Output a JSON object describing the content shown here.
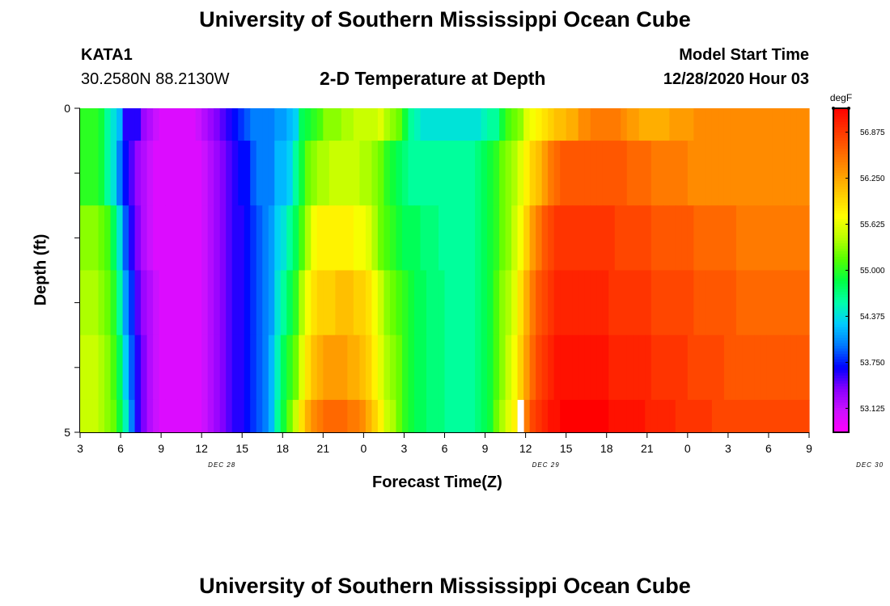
{
  "header": {
    "title": "University of Southern Mississippi Ocean Cube",
    "station": "KATA1",
    "location": "30.2580N 88.2130W",
    "model_start_label": "Model Start Time",
    "model_start_value": "12/28/2020 Hour 03"
  },
  "footer": {
    "title": "University of Southern Mississippi Ocean Cube"
  },
  "chart_data": {
    "type": "heatmap",
    "title": "2-D Temperature at Depth",
    "xlabel": "Forecast Time(Z)",
    "ylabel": "Depth (ft)",
    "x_tick_labels": [
      "3",
      "6",
      "9",
      "12",
      "15",
      "18",
      "21",
      "0",
      "3",
      "6",
      "9",
      "12",
      "15",
      "18",
      "21",
      "0",
      "3",
      "6",
      "9"
    ],
    "y_tick_labels": [
      "0",
      "5"
    ],
    "y_range": [
      0,
      5
    ],
    "date_labels": [
      "DEC 28",
      "DEC 29",
      "DEC 30"
    ],
    "colorbar": {
      "unit": "degF",
      "tick_labels": [
        "56.875",
        "56.250",
        "55.625",
        "55.000",
        "54.375",
        "53.750",
        "53.125"
      ],
      "range": [
        52.8,
        57.2
      ],
      "colors": [
        "#ff00ff",
        "#cc11ff",
        "#8800ff",
        "#0000ff",
        "#0077ff",
        "#00ccff",
        "#00ffaa",
        "#00ff44",
        "#55ff00",
        "#bbff00",
        "#ffff00",
        "#ffcc00",
        "#ff9900",
        "#ff6600",
        "#ff3300",
        "#ff0000"
      ]
    },
    "time_step_hours": 1,
    "start_hour": 3,
    "depth_rows": [
      {
        "depth_range": [
          0.0,
          0.5
        ],
        "values": [
          55.0,
          55.0,
          55.0,
          54.9,
          54.6,
          54.4,
          54.2,
          53.6,
          53.6,
          53.6,
          53.3,
          53.2,
          53.1,
          53.0,
          53.0,
          53.0,
          53.0,
          53.0,
          53.0,
          53.1,
          53.2,
          53.3,
          53.4,
          53.5,
          53.6,
          53.7,
          53.8,
          53.9,
          54.0,
          54.0,
          54.0,
          54.0,
          54.1,
          54.1,
          54.2,
          54.3,
          54.8,
          54.9,
          55.0,
          55.1,
          55.3,
          55.3,
          55.3,
          55.4,
          55.4,
          55.5,
          55.5,
          55.5,
          55.5,
          55.6,
          55.4,
          55.3,
          55.2,
          54.9,
          54.6,
          54.5,
          54.4,
          54.4,
          54.4,
          54.4,
          54.4,
          54.4,
          54.4,
          54.4,
          54.4,
          54.4,
          54.5,
          54.6,
          54.6,
          54.9,
          55.1,
          55.2,
          55.3,
          55.6,
          55.7,
          55.8,
          55.9,
          56.0,
          56.1,
          56.1,
          56.2,
          56.2,
          56.4,
          56.4,
          56.5,
          56.5,
          56.5,
          56.5,
          56.5,
          56.4,
          56.3,
          56.3,
          56.2,
          56.2,
          56.2,
          56.2,
          56.2,
          56.3,
          56.3,
          56.3,
          56.3,
          56.4,
          56.4,
          56.4,
          56.4,
          56.4,
          56.4,
          56.4,
          56.4,
          56.4,
          56.4,
          56.4,
          56.4,
          56.4,
          56.4,
          56.4,
          56.4,
          56.4,
          56.4,
          56.4
        ]
      },
      {
        "depth_range": [
          0.5,
          1.5
        ],
        "values": [
          55.0,
          55.0,
          55.0,
          54.9,
          54.6,
          54.4,
          54.0,
          53.7,
          53.5,
          53.3,
          53.2,
          53.1,
          53.0,
          53.0,
          53.0,
          53.0,
          53.0,
          53.0,
          53.0,
          53.0,
          53.1,
          53.2,
          53.3,
          53.4,
          53.5,
          53.6,
          53.7,
          53.7,
          53.9,
          54.0,
          54.0,
          54.0,
          54.2,
          54.2,
          54.3,
          54.6,
          54.9,
          55.2,
          55.3,
          55.4,
          55.4,
          55.5,
          55.5,
          55.5,
          55.5,
          55.5,
          55.4,
          55.4,
          55.3,
          55.2,
          55.0,
          54.9,
          54.8,
          54.7,
          54.6,
          54.6,
          54.6,
          54.6,
          54.6,
          54.6,
          54.6,
          54.6,
          54.6,
          54.6,
          54.6,
          54.7,
          54.8,
          54.9,
          55.0,
          55.2,
          55.3,
          55.4,
          55.6,
          55.8,
          56.0,
          56.1,
          56.3,
          56.5,
          56.6,
          56.7,
          56.7,
          56.7,
          56.7,
          56.7,
          56.7,
          56.7,
          56.7,
          56.7,
          56.7,
          56.7,
          56.6,
          56.6,
          56.6,
          56.6,
          56.5,
          56.5,
          56.5,
          56.5,
          56.5,
          56.5,
          56.4,
          56.4,
          56.4,
          56.4,
          56.4,
          56.4,
          56.4,
          56.4,
          56.4,
          56.4,
          56.4,
          56.4,
          56.4,
          56.4,
          56.4,
          56.4,
          56.4,
          56.4,
          56.4,
          56.4
        ]
      },
      {
        "depth_range": [
          1.5,
          2.5
        ],
        "values": [
          55.3,
          55.3,
          55.3,
          55.2,
          55.1,
          54.8,
          54.4,
          53.9,
          53.6,
          53.4,
          53.2,
          53.1,
          53.0,
          53.0,
          53.0,
          53.0,
          53.0,
          53.0,
          53.0,
          53.0,
          53.1,
          53.2,
          53.3,
          53.4,
          53.5,
          53.6,
          53.6,
          53.7,
          53.8,
          53.9,
          54.0,
          54.1,
          54.3,
          54.4,
          54.6,
          54.8,
          55.1,
          55.4,
          55.7,
          55.8,
          55.8,
          55.8,
          55.8,
          55.8,
          55.8,
          55.7,
          55.7,
          55.6,
          55.4,
          55.2,
          55.1,
          55.0,
          54.9,
          54.8,
          54.8,
          54.8,
          54.7,
          54.7,
          54.7,
          54.6,
          54.6,
          54.6,
          54.6,
          54.6,
          54.6,
          54.7,
          54.8,
          54.9,
          55.0,
          55.2,
          55.3,
          55.5,
          55.7,
          56.0,
          56.3,
          56.5,
          56.7,
          56.8,
          56.9,
          56.9,
          56.9,
          56.9,
          56.9,
          56.9,
          56.9,
          56.9,
          56.9,
          56.9,
          56.8,
          56.8,
          56.8,
          56.8,
          56.8,
          56.8,
          56.7,
          56.7,
          56.7,
          56.7,
          56.7,
          56.7,
          56.7,
          56.6,
          56.6,
          56.6,
          56.6,
          56.6,
          56.6,
          56.6,
          56.5,
          56.5,
          56.5,
          56.5,
          56.5,
          56.5,
          56.5,
          56.5,
          56.5,
          56.5,
          56.5,
          56.5
        ]
      },
      {
        "depth_range": [
          2.5,
          3.5
        ],
        "values": [
          55.4,
          55.4,
          55.4,
          55.3,
          55.2,
          55.0,
          54.6,
          54.1,
          53.8,
          53.5,
          53.3,
          53.2,
          53.1,
          53.0,
          53.0,
          53.0,
          53.0,
          53.0,
          53.0,
          53.0,
          53.1,
          53.2,
          53.3,
          53.4,
          53.5,
          53.6,
          53.6,
          53.7,
          53.8,
          53.9,
          54.0,
          54.1,
          54.4,
          54.6,
          54.8,
          55.0,
          55.4,
          55.7,
          55.9,
          56.0,
          56.0,
          56.0,
          56.1,
          56.1,
          56.1,
          56.0,
          56.0,
          55.9,
          55.7,
          55.5,
          55.3,
          55.2,
          55.1,
          55.0,
          54.9,
          54.8,
          54.8,
          54.7,
          54.7,
          54.7,
          54.6,
          54.6,
          54.6,
          54.6,
          54.6,
          54.7,
          54.8,
          54.9,
          55.1,
          55.3,
          55.4,
          55.6,
          55.9,
          56.2,
          56.5,
          56.7,
          56.8,
          56.9,
          57.0,
          57.0,
          57.0,
          57.0,
          57.0,
          57.0,
          57.0,
          57.0,
          57.0,
          56.9,
          56.9,
          56.9,
          56.9,
          56.9,
          56.9,
          56.9,
          56.8,
          56.8,
          56.8,
          56.8,
          56.8,
          56.8,
          56.8,
          56.7,
          56.7,
          56.7,
          56.7,
          56.7,
          56.7,
          56.7,
          56.6,
          56.6,
          56.6,
          56.6,
          56.6,
          56.6,
          56.6,
          56.6,
          56.6,
          56.6,
          56.6,
          56.6
        ]
      },
      {
        "depth_range": [
          3.5,
          4.5
        ],
        "values": [
          55.5,
          55.5,
          55.5,
          55.4,
          55.3,
          55.1,
          54.8,
          54.3,
          53.9,
          53.6,
          53.4,
          53.2,
          53.1,
          53.0,
          53.0,
          53.0,
          53.0,
          53.0,
          53.0,
          53.0,
          53.1,
          53.2,
          53.3,
          53.4,
          53.5,
          53.6,
          53.6,
          53.7,
          53.8,
          53.9,
          54.0,
          54.2,
          54.5,
          54.8,
          55.0,
          55.2,
          55.6,
          55.9,
          56.1,
          56.2,
          56.3,
          56.3,
          56.3,
          56.3,
          56.2,
          56.2,
          56.1,
          56.0,
          55.8,
          55.6,
          55.4,
          55.3,
          55.2,
          55.0,
          54.9,
          54.8,
          54.8,
          54.7,
          54.7,
          54.7,
          54.6,
          54.6,
          54.6,
          54.6,
          54.6,
          54.7,
          54.8,
          54.9,
          55.1,
          55.3,
          55.5,
          55.7,
          56.0,
          56.3,
          56.6,
          56.8,
          56.9,
          57.0,
          57.1,
          57.1,
          57.1,
          57.1,
          57.1,
          57.1,
          57.1,
          57.1,
          57.1,
          57.0,
          57.0,
          57.0,
          57.0,
          57.0,
          57.0,
          57.0,
          56.9,
          56.9,
          56.9,
          56.9,
          56.9,
          56.9,
          56.8,
          56.8,
          56.8,
          56.8,
          56.8,
          56.8,
          56.7,
          56.7,
          56.7,
          56.7,
          56.7,
          56.7,
          56.7,
          56.7,
          56.7,
          56.7,
          56.7,
          56.7,
          56.7,
          56.7
        ]
      },
      {
        "depth_range": [
          4.5,
          5.0
        ],
        "values": [
          55.5,
          55.5,
          55.5,
          55.4,
          55.3,
          55.2,
          54.9,
          54.5,
          54.0,
          53.6,
          53.4,
          53.2,
          53.1,
          53.0,
          53.0,
          53.0,
          53.0,
          53.0,
          53.0,
          53.0,
          53.1,
          53.2,
          53.3,
          53.4,
          53.5,
          53.6,
          53.6,
          53.7,
          53.8,
          53.9,
          54.0,
          54.2,
          54.6,
          54.9,
          55.2,
          55.5,
          55.9,
          56.2,
          56.4,
          56.5,
          56.6,
          56.6,
          56.6,
          56.6,
          56.5,
          56.5,
          56.4,
          56.2,
          56.0,
          55.8,
          55.5,
          55.4,
          55.2,
          55.0,
          54.9,
          54.8,
          54.8,
          54.7,
          54.7,
          54.7,
          54.6,
          54.6,
          54.6,
          54.6,
          54.6,
          54.7,
          54.8,
          54.9,
          55.2,
          55.4,
          55.6,
          55.8,
          56.2,
          56.5,
          56.8,
          56.9,
          57.0,
          57.1,
          57.1,
          57.2,
          57.2,
          57.2,
          57.2,
          57.2,
          57.2,
          57.2,
          57.2,
          57.1,
          57.1,
          57.1,
          57.1,
          57.1,
          57.1,
          57.0,
          57.0,
          57.0,
          57.0,
          57.0,
          56.9,
          56.9,
          56.9,
          56.9,
          56.9,
          56.9,
          56.8,
          56.8,
          56.8,
          56.8,
          56.8,
          56.8,
          56.8,
          56.8,
          56.8,
          56.8,
          56.8,
          56.8,
          56.8,
          56.8,
          56.8,
          56.8
        ]
      }
    ],
    "marker": {
      "type": "white-vertical-bar",
      "x_hour_index": 72
    }
  }
}
